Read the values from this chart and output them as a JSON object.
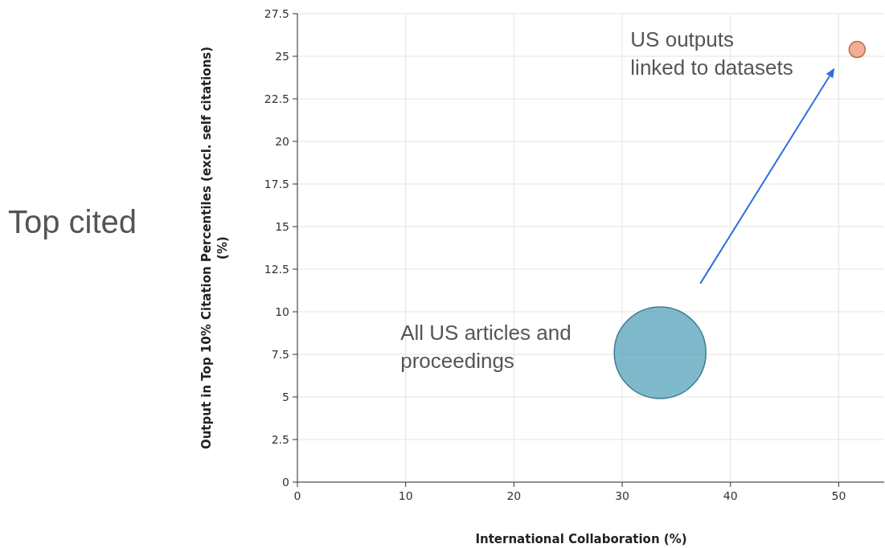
{
  "chart_data": {
    "type": "bubble",
    "xlabel": "International Collaboration (%)",
    "ylabel": "Output in Top 10% Citation Percentiles (excl. self citations)\n(%)",
    "x": [
      33.5,
      51.7
    ],
    "values": [
      7.6,
      25.4
    ],
    "sizes": [
      1,
      0.031
    ],
    "colors": [
      "#4a9bb5",
      "#ee8a68"
    ],
    "xlim": [
      0,
      54.2
    ],
    "xticks": [
      0,
      10,
      20,
      30,
      40,
      50
    ],
    "ylim": [
      0,
      27.5
    ],
    "yticks": [
      0,
      2.5,
      5,
      7.5,
      10,
      12.5,
      15,
      17.5,
      20,
      22.5,
      25,
      27.5
    ],
    "grid": true,
    "annotations": [
      "Top cited",
      "US outputs\nlinked to datasets",
      "All US articles and\nproceedings"
    ]
  }
}
